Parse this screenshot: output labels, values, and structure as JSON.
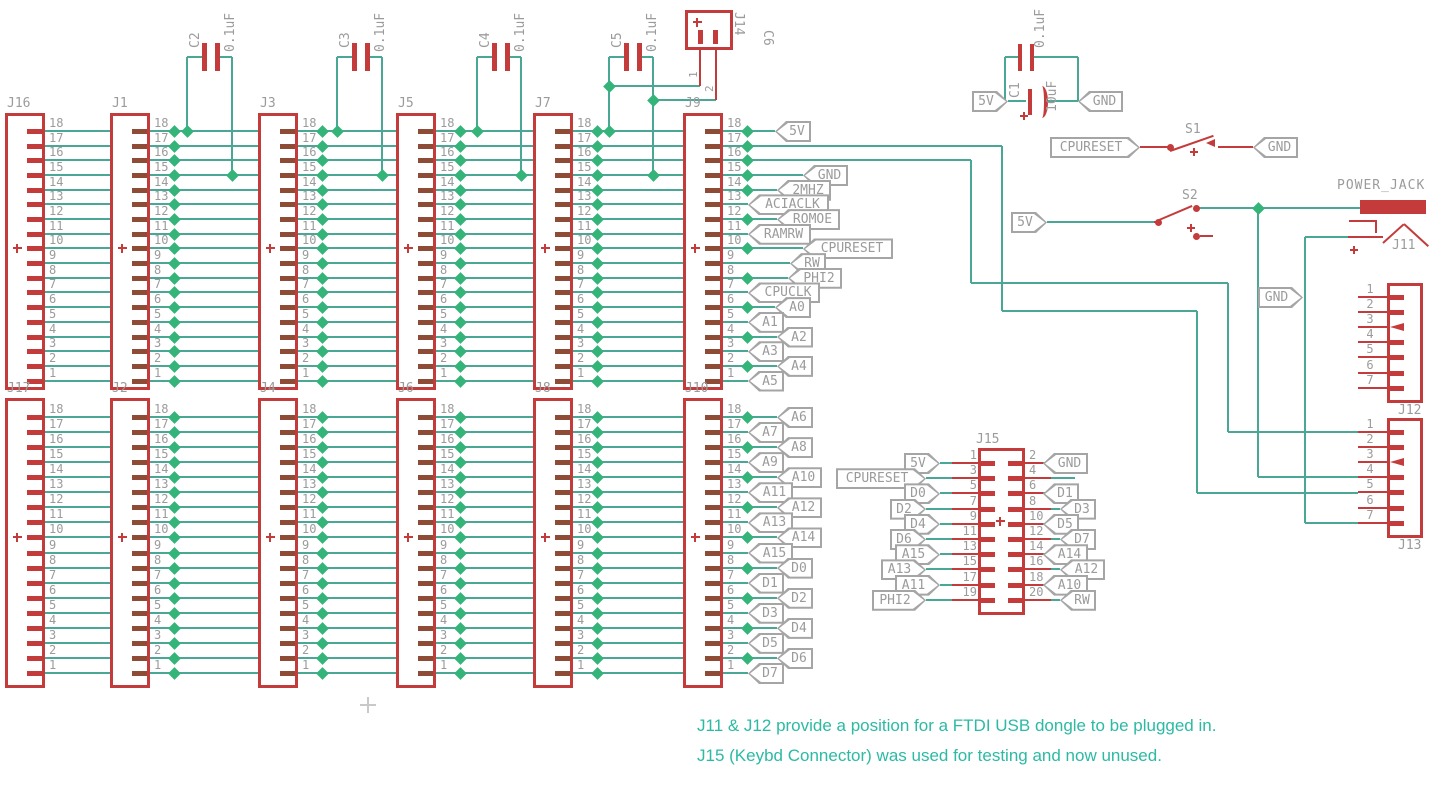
{
  "colors": {
    "component": "#c43b3b",
    "pin_overlap": "#8e4c36",
    "wire": "#4aa795",
    "junction": "#35b47a",
    "label": "#9b9b9b",
    "note": "#2cbaa4"
  },
  "bus": {
    "pin_labels": [
      "18",
      "17",
      "16",
      "15",
      "14",
      "13",
      "12",
      "11",
      "10",
      "9",
      "8",
      "7",
      "6",
      "5",
      "4",
      "3",
      "2",
      "1"
    ],
    "top_connectors": [
      {
        "name": "J16"
      },
      {
        "name": "J1"
      },
      {
        "name": "J3"
      },
      {
        "name": "J5"
      },
      {
        "name": "J7"
      },
      {
        "name": "J9"
      }
    ],
    "bottom_connectors": [
      {
        "name": "J17"
      },
      {
        "name": "J2"
      },
      {
        "name": "J4"
      },
      {
        "name": "J6"
      },
      {
        "name": "J8"
      },
      {
        "name": "J10"
      }
    ]
  },
  "flags": {
    "j9": {
      "18": "5V",
      "15": "GND",
      "14": "2MHZ",
      "13": "ACIACLK",
      "12": "ROMOE",
      "11": "RAMRW",
      "10": "CPURESET",
      "9": "RW",
      "8": "PHI2",
      "7": "CPUCLK",
      "6": "A0",
      "5": "A1",
      "4": "A2",
      "3": "A3",
      "2": "A4",
      "1": "A5"
    },
    "j10": {
      "18": "A6",
      "17": "A7",
      "16": "A8",
      "15": "A9",
      "14": "A10",
      "13": "A11",
      "12": "A12",
      "11": "A13",
      "10": "A14",
      "9": "A15",
      "8": "D0",
      "7": "D1",
      "6": "D2",
      "5": "D3",
      "4": "D4",
      "3": "D5",
      "2": "D6",
      "1": "D7"
    }
  },
  "capacitors": [
    {
      "name": "C2",
      "value": "0.1uF"
    },
    {
      "name": "C3",
      "value": "0.1uF"
    },
    {
      "name": "C4",
      "value": "0.1uF"
    },
    {
      "name": "C5",
      "value": "0.1uF"
    }
  ],
  "j14": {
    "name": "J14",
    "pin_labels": [
      "1",
      "2"
    ]
  },
  "c6_name": "C6",
  "power_block": {
    "c1": {
      "name": "C1",
      "value": "10uF",
      "bypass_value": "0.1uF",
      "left_net": "5V",
      "right_net": "GND"
    },
    "s1": {
      "name": "S1",
      "input_net": "CPURESET",
      "output_net": "GND"
    },
    "s2": {
      "name": "S2",
      "input_net": "5V"
    },
    "jack": {
      "title": "POWER_JACK",
      "ref": "J11"
    },
    "gnd_net": "GND"
  },
  "j15": {
    "name": "J15",
    "rows": [
      {
        "lpin": "1",
        "lnet": "5V",
        "rpin": "2",
        "rnet": "GND"
      },
      {
        "lpin": "3",
        "lnet": "CPURESET",
        "rpin": "4",
        "rnet": ""
      },
      {
        "lpin": "5",
        "lnet": "D0",
        "rpin": "6",
        "rnet": "D1"
      },
      {
        "lpin": "7",
        "lnet": "D2",
        "rpin": "8",
        "rnet": "D3"
      },
      {
        "lpin": "9",
        "lnet": "D4",
        "rpin": "10",
        "rnet": "D5"
      },
      {
        "lpin": "11",
        "lnet": "D6",
        "rpin": "12",
        "rnet": "D7"
      },
      {
        "lpin": "13",
        "lnet": "A15",
        "rpin": "14",
        "rnet": "A14"
      },
      {
        "lpin": "15",
        "lnet": "A13",
        "rpin": "16",
        "rnet": "A12"
      },
      {
        "lpin": "17",
        "lnet": "A11",
        "rpin": "18",
        "rnet": "A10"
      },
      {
        "lpin": "19",
        "lnet": "PHI2",
        "rpin": "20",
        "rnet": "RW"
      }
    ]
  },
  "right_connectors": [
    {
      "name": "J12",
      "pin_labels": [
        "1",
        "2",
        "3",
        "4",
        "5",
        "6",
        "7"
      ]
    },
    {
      "name": "J13",
      "pin_labels": [
        "1",
        "2",
        "3",
        "4",
        "5",
        "6",
        "7"
      ]
    }
  ],
  "notes": [
    "J11 & J12 provide a position for a FTDI USB dongle to be plugged in.",
    "J15 (Keybd Connector) was used for testing and now unused."
  ]
}
